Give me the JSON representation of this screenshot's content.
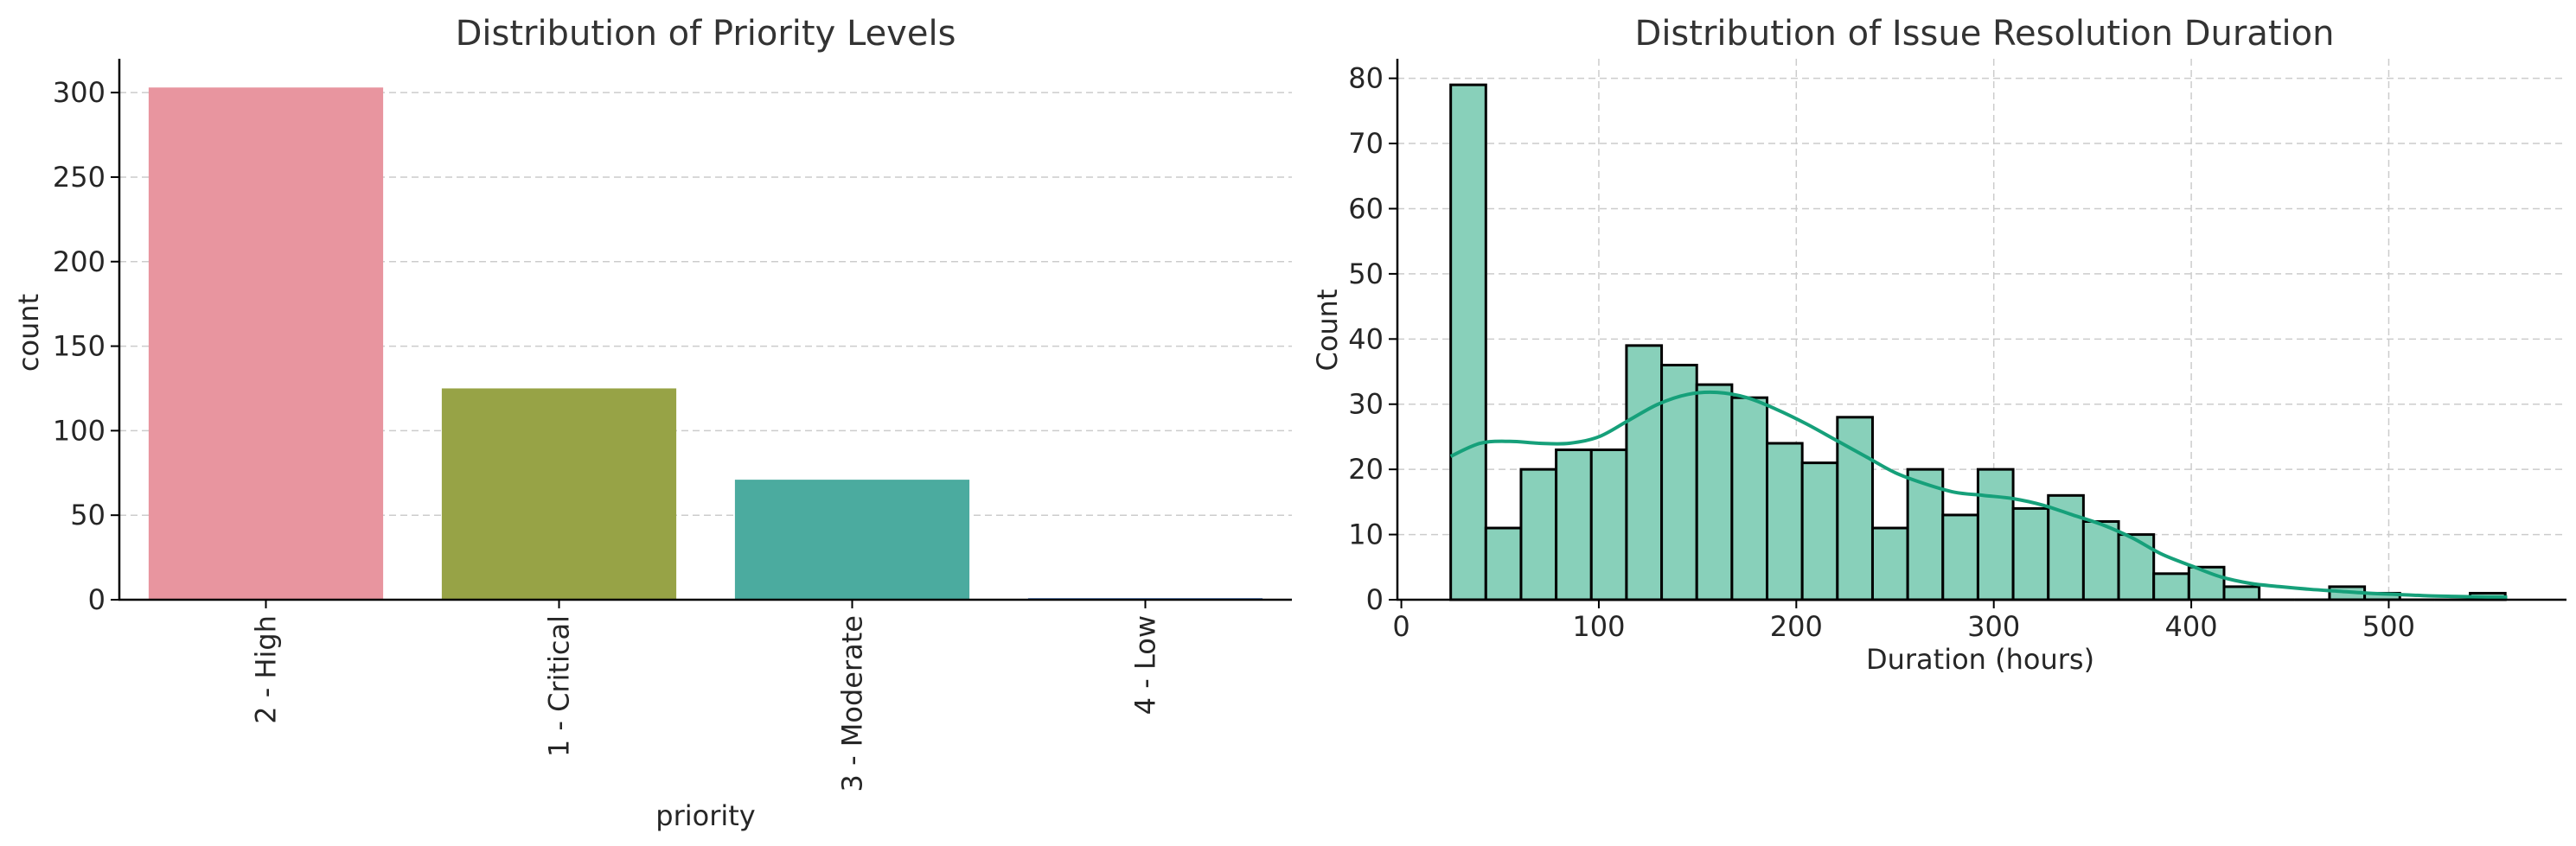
{
  "chart_data": [
    {
      "type": "bar",
      "title": "Distribution of Priority Levels",
      "xlabel": "priority",
      "ylabel": "count",
      "categories": [
        "2 - High",
        "1 - Critical",
        "3 - Moderate",
        "4 - Low"
      ],
      "values": [
        303,
        125,
        71,
        1
      ],
      "colors": [
        "#e8959f",
        "#97a346",
        "#4bab9f",
        "#6b8fc9"
      ],
      "ylim": [
        0,
        320
      ],
      "yticks": [
        0,
        50,
        100,
        150,
        200,
        250,
        300
      ],
      "grid": "y",
      "legend": "none"
    },
    {
      "type": "histogram",
      "title": "Distribution of Issue Resolution Duration",
      "xlabel": "Duration (hours)",
      "ylabel": "Count",
      "bin_start": 25,
      "bin_width": 17.8,
      "counts": [
        79,
        11,
        20,
        23,
        23,
        39,
        36,
        33,
        31,
        24,
        21,
        28,
        11,
        20,
        13,
        20,
        14,
        16,
        12,
        10,
        4,
        5,
        2,
        0,
        0,
        2,
        1,
        0,
        0,
        1
      ],
      "kde": {
        "x": [
          25,
          40,
          55,
          70,
          85,
          100,
          115,
          130,
          145,
          160,
          175,
          190,
          205,
          220,
          235,
          250,
          265,
          280,
          295,
          310,
          325,
          340,
          355,
          370,
          385,
          400,
          415,
          430,
          445,
          460,
          475,
          490,
          505,
          520,
          535,
          550,
          560
        ],
        "y": [
          22,
          24,
          24.3,
          24,
          24,
          25,
          27.5,
          30,
          31.5,
          31.8,
          31,
          29.2,
          27,
          24.5,
          22,
          19.5,
          17.8,
          16.5,
          16,
          15.5,
          14.5,
          13,
          11.5,
          9.5,
          7,
          5.2,
          3.5,
          2.5,
          2,
          1.6,
          1.3,
          1,
          0.8,
          0.6,
          0.5,
          0.4,
          0.4
        ]
      },
      "bar_color": "#88d0ba",
      "kde_color": "#16a07a",
      "xlim": [
        -2,
        590
      ],
      "ylim": [
        0,
        83
      ],
      "xticks": [
        0,
        100,
        200,
        300,
        400,
        500
      ],
      "yticks": [
        0,
        10,
        20,
        30,
        40,
        50,
        60,
        70,
        80
      ],
      "grid": "both",
      "legend": "none"
    }
  ]
}
